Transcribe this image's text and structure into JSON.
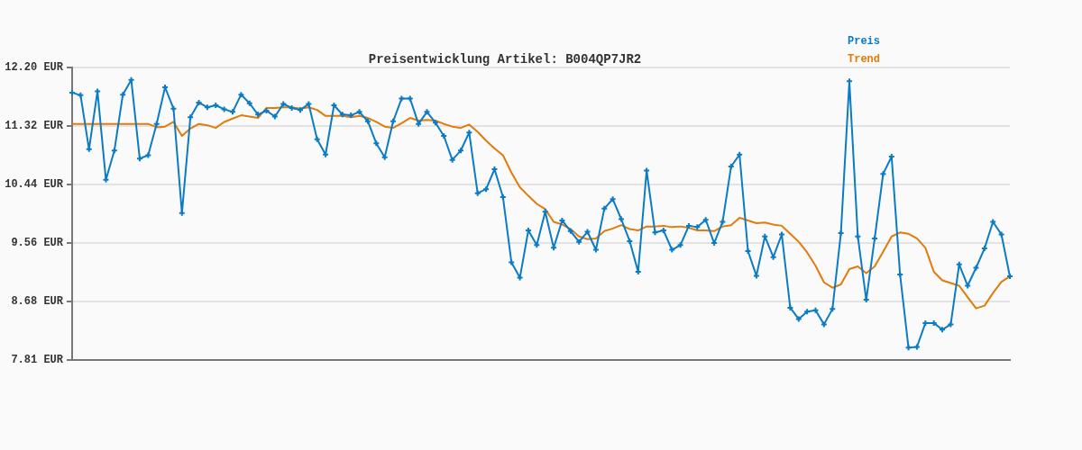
{
  "chart_data": {
    "type": "line",
    "title": "Preisentwicklung Artikel: B004QP7JR2",
    "categories": [
      null,
      null,
      null,
      null,
      null,
      null,
      null,
      null,
      null,
      null,
      null,
      null,
      null,
      null,
      null,
      null,
      null,
      null,
      null,
      null,
      null,
      null,
      null,
      null,
      null,
      null,
      null,
      null,
      null,
      null,
      null,
      null,
      null,
      null,
      null,
      null,
      null,
      null,
      null,
      null,
      null,
      null,
      null,
      null,
      null,
      null,
      null,
      null,
      null,
      null,
      null,
      null,
      null,
      null,
      null,
      null,
      null,
      null,
      null,
      null,
      null,
      null,
      null,
      null,
      null,
      null,
      null,
      null,
      null,
      null,
      null,
      null,
      null,
      null,
      null,
      null,
      null,
      null,
      null,
      null,
      null,
      null,
      null,
      null,
      null,
      null,
      null,
      null,
      null,
      null,
      null,
      null,
      null,
      null,
      null,
      null,
      null,
      null,
      null,
      null,
      null,
      null,
      null,
      null,
      null,
      null,
      null,
      null,
      null,
      null,
      null,
      null
    ],
    "series": [
      {
        "name": "Preis",
        "color": "#0b7bc4",
        "marker": "cross",
        "values": [
          11.82,
          11.78,
          10.97,
          11.84,
          10.51,
          10.95,
          11.79,
          12.01,
          10.83,
          10.88,
          11.35,
          11.9,
          11.58,
          10.01,
          11.45,
          11.67,
          11.6,
          11.63,
          11.57,
          11.53,
          11.79,
          11.66,
          11.49,
          11.55,
          11.46,
          11.65,
          11.59,
          11.56,
          11.65,
          11.12,
          10.89,
          11.63,
          11.49,
          11.48,
          11.53,
          11.39,
          11.06,
          10.85,
          11.39,
          11.73,
          11.73,
          11.35,
          11.53,
          11.37,
          11.17,
          10.81,
          10.95,
          11.22,
          10.31,
          10.37,
          10.67,
          10.25,
          9.27,
          9.04,
          9.75,
          9.53,
          10.03,
          9.49,
          9.9,
          9.74,
          9.58,
          9.73,
          9.46,
          10.08,
          10.22,
          9.92,
          9.59,
          9.13,
          10.65,
          9.72,
          9.75,
          9.46,
          9.53,
          9.82,
          9.8,
          9.91,
          9.56,
          9.88,
          10.71,
          10.89,
          9.44,
          9.07,
          9.66,
          9.35,
          9.69,
          8.59,
          8.42,
          8.53,
          8.55,
          8.34,
          8.57,
          9.71,
          11.99,
          9.66,
          8.71,
          9.63,
          10.6,
          10.86,
          9.09,
          7.99,
          8.0,
          8.36,
          8.36,
          8.26,
          8.34,
          9.24,
          8.92,
          9.19,
          9.48,
          9.88,
          9.69,
          9.06
        ]
      },
      {
        "name": "Trend",
        "color": "#e07b0c",
        "marker": "none",
        "values": [
          11.35,
          11.35,
          11.35,
          11.35,
          11.35,
          11.35,
          11.35,
          11.35,
          11.35,
          11.35,
          11.3,
          11.31,
          11.38,
          11.17,
          11.28,
          11.35,
          11.33,
          11.29,
          11.38,
          11.43,
          11.48,
          11.46,
          11.44,
          11.59,
          11.59,
          11.6,
          11.6,
          11.58,
          11.6,
          11.56,
          11.47,
          11.47,
          11.47,
          11.45,
          11.47,
          11.44,
          11.38,
          11.31,
          11.29,
          11.36,
          11.44,
          11.4,
          11.41,
          11.4,
          11.35,
          11.31,
          11.29,
          11.34,
          11.23,
          11.1,
          10.98,
          10.88,
          10.62,
          10.4,
          10.27,
          10.15,
          10.07,
          9.88,
          9.84,
          9.77,
          9.66,
          9.62,
          9.63,
          9.74,
          9.78,
          9.83,
          9.77,
          9.75,
          9.81,
          9.81,
          9.82,
          9.8,
          9.81,
          9.79,
          9.75,
          9.75,
          9.74,
          9.81,
          9.83,
          9.94,
          9.9,
          9.86,
          9.87,
          9.84,
          9.82,
          9.7,
          9.58,
          9.42,
          9.22,
          8.97,
          8.89,
          8.94,
          9.17,
          9.21,
          9.11,
          9.21,
          9.43,
          9.66,
          9.72,
          9.7,
          9.63,
          9.49,
          9.13,
          9.0,
          8.96,
          8.92,
          8.75,
          8.58,
          8.62,
          8.81,
          8.98,
          9.06
        ]
      }
    ],
    "ylim": [
      7.81,
      12.2
    ],
    "yticks": [
      {
        "value": 7.81,
        "label": "7.81 EUR"
      },
      {
        "value": 8.68,
        "label": "8.68 EUR"
      },
      {
        "value": 9.56,
        "label": "9.56 EUR"
      },
      {
        "value": 10.44,
        "label": "10.44 EUR"
      },
      {
        "value": 11.32,
        "label": "11.32 EUR"
      },
      {
        "value": 12.2,
        "label": "12.20 EUR"
      }
    ],
    "grid": "y",
    "legend": "top right",
    "line_style": "solid"
  }
}
